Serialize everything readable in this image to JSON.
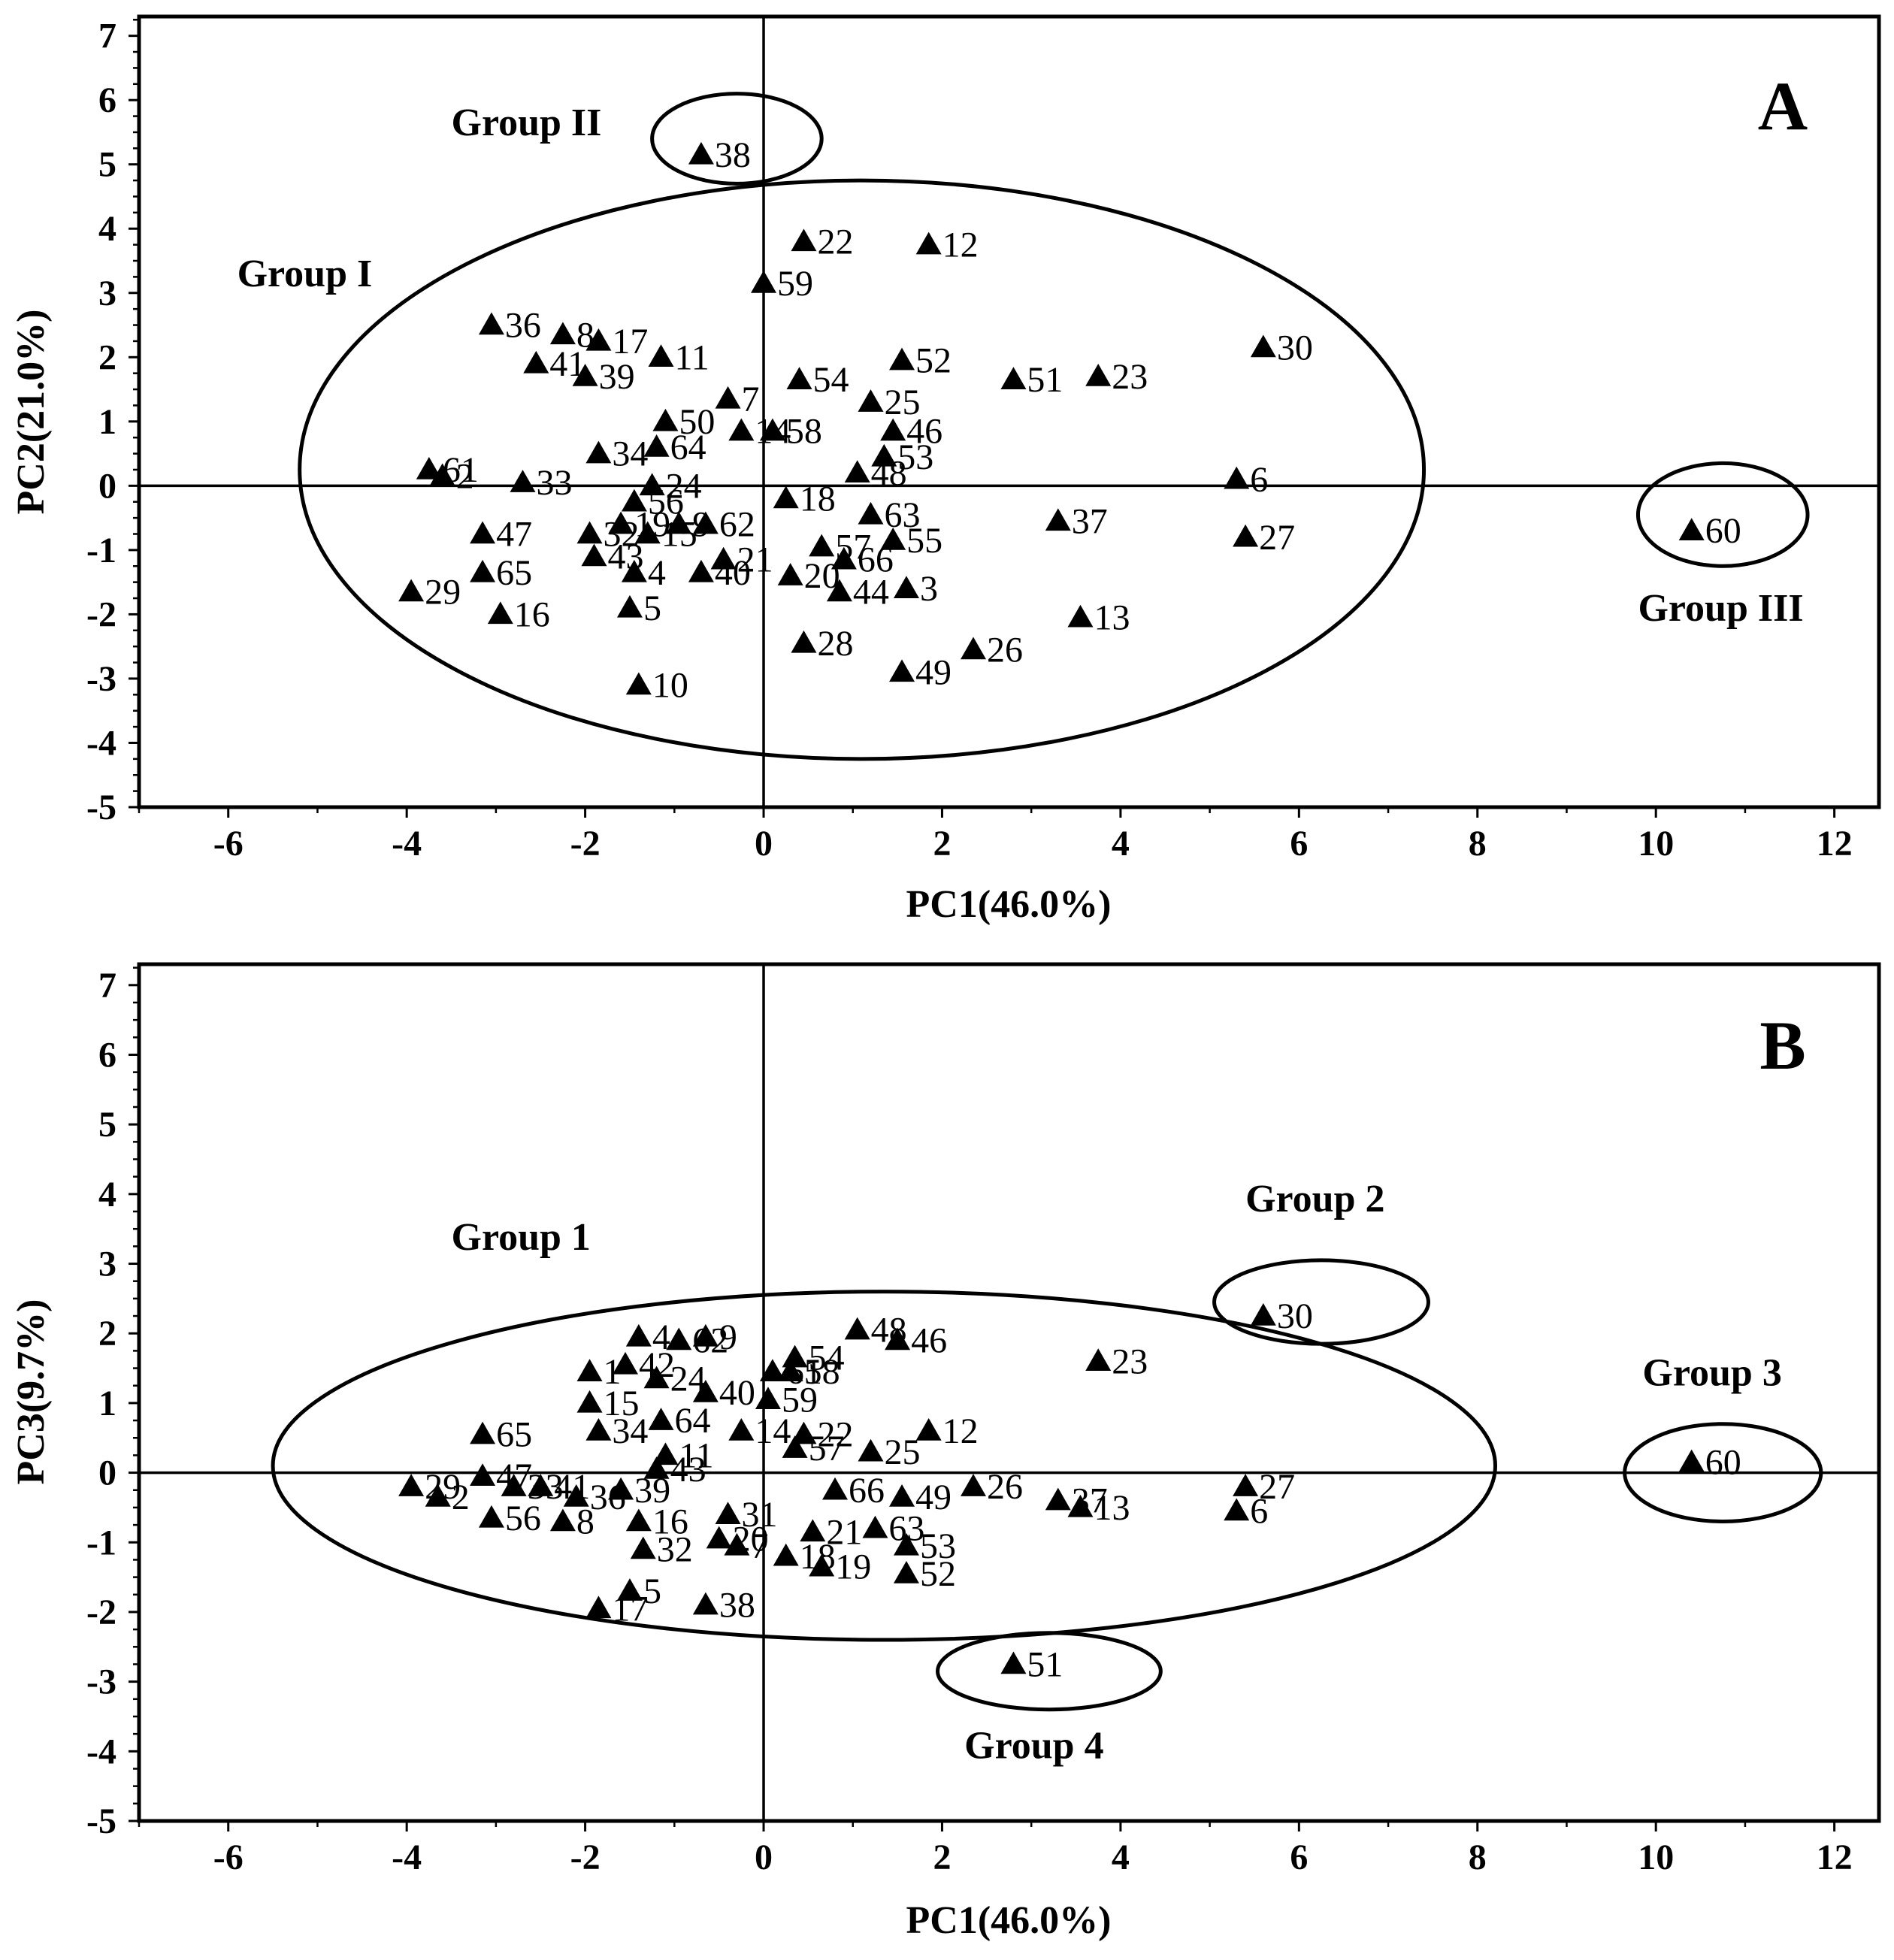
{
  "figure": {
    "colors": {
      "ink": "#000000",
      "background": "#ffffff"
    }
  },
  "chart_data": [
    {
      "type": "scatter",
      "panel": "A",
      "title": "",
      "xlabel": "PC1(46.0%)",
      "ylabel": "PC2(21.0%)",
      "xlim": [
        -7,
        12.5
      ],
      "ylim": [
        -5,
        7.3
      ],
      "xticks": [
        -6,
        -4,
        -2,
        0,
        2,
        4,
        6,
        8,
        10,
        12
      ],
      "yticks": [
        -5,
        -4,
        -3,
        -2,
        -1,
        0,
        1,
        2,
        3,
        4,
        5,
        6,
        7
      ],
      "grid": false,
      "marker": "triangle",
      "groups": [
        {
          "name": "Group I",
          "center": [
            1.1,
            0.25
          ],
          "radii": [
            6.3,
            4.5
          ]
        },
        {
          "name": "Group II",
          "center": [
            -0.3,
            5.4
          ],
          "radii": [
            0.95,
            0.7
          ]
        },
        {
          "name": "Group III",
          "center": [
            10.75,
            -0.45
          ],
          "radii": [
            0.95,
            0.8
          ]
        }
      ],
      "group_labels": [
        {
          "text": "Group I",
          "x": -5.9,
          "y": 3.1
        },
        {
          "text": "Group II",
          "x": -3.5,
          "y": 5.45
        },
        {
          "text": "Group III",
          "x": 9.8,
          "y": -2.1
        }
      ],
      "points": [
        {
          "id": "38",
          "x": -0.7,
          "y": 5.15
        },
        {
          "id": "22",
          "x": 0.45,
          "y": 3.8
        },
        {
          "id": "12",
          "x": 1.85,
          "y": 3.75
        },
        {
          "id": "59",
          "x": 0.0,
          "y": 3.15
        },
        {
          "id": "36",
          "x": -3.05,
          "y": 2.5
        },
        {
          "id": "8",
          "x": -2.25,
          "y": 2.35
        },
        {
          "id": "17",
          "x": -1.85,
          "y": 2.25
        },
        {
          "id": "11",
          "x": -1.15,
          "y": 2.0
        },
        {
          "id": "41",
          "x": -2.55,
          "y": 1.9
        },
        {
          "id": "39",
          "x": -2.0,
          "y": 1.7
        },
        {
          "id": "30",
          "x": 5.6,
          "y": 2.15
        },
        {
          "id": "52",
          "x": 1.55,
          "y": 1.95
        },
        {
          "id": "54",
          "x": 0.4,
          "y": 1.65
        },
        {
          "id": "51",
          "x": 2.8,
          "y": 1.65
        },
        {
          "id": "23",
          "x": 3.75,
          "y": 1.7
        },
        {
          "id": "7",
          "x": -0.4,
          "y": 1.35
        },
        {
          "id": "25",
          "x": 1.2,
          "y": 1.3
        },
        {
          "id": "50",
          "x": -1.1,
          "y": 1.0
        },
        {
          "id": "14",
          "x": -0.25,
          "y": 0.85
        },
        {
          "id": "58",
          "x": 0.1,
          "y": 0.85
        },
        {
          "id": "46",
          "x": 1.45,
          "y": 0.85
        },
        {
          "id": "64",
          "x": -1.2,
          "y": 0.6
        },
        {
          "id": "34",
          "x": -1.85,
          "y": 0.5
        },
        {
          "id": "53",
          "x": 1.35,
          "y": 0.45
        },
        {
          "id": "61",
          "x": -3.75,
          "y": 0.25
        },
        {
          "id": "2",
          "x": -3.6,
          "y": 0.15
        },
        {
          "id": "48",
          "x": 1.05,
          "y": 0.2
        },
        {
          "id": "33",
          "x": -2.7,
          "y": 0.05
        },
        {
          "id": "24",
          "x": -1.25,
          "y": 0.0
        },
        {
          "id": "6",
          "x": 5.3,
          "y": 0.1
        },
        {
          "id": "18",
          "x": 0.25,
          "y": -0.2
        },
        {
          "id": "56",
          "x": -1.45,
          "y": -0.25
        },
        {
          "id": "63",
          "x": 1.2,
          "y": -0.45
        },
        {
          "id": "37",
          "x": 3.3,
          "y": -0.55
        },
        {
          "id": "60",
          "x": 10.4,
          "y": -0.7
        },
        {
          "id": "47",
          "x": -3.15,
          "y": -0.75
        },
        {
          "id": "19",
          "x": -1.6,
          "y": -0.6
        },
        {
          "id": "9",
          "x": -0.95,
          "y": -0.6
        },
        {
          "id": "62",
          "x": -0.65,
          "y": -0.6
        },
        {
          "id": "32",
          "x": -1.95,
          "y": -0.75
        },
        {
          "id": "15",
          "x": -1.3,
          "y": -0.75
        },
        {
          "id": "27",
          "x": 5.4,
          "y": -0.8
        },
        {
          "id": "55",
          "x": 1.45,
          "y": -0.85
        },
        {
          "id": "57",
          "x": 0.65,
          "y": -0.95
        },
        {
          "id": "43",
          "x": -1.9,
          "y": -1.1
        },
        {
          "id": "21",
          "x": -0.45,
          "y": -1.15
        },
        {
          "id": "66",
          "x": 0.9,
          "y": -1.15
        },
        {
          "id": "65",
          "x": -3.15,
          "y": -1.35
        },
        {
          "id": "4",
          "x": -1.45,
          "y": -1.35
        },
        {
          "id": "40",
          "x": -0.7,
          "y": -1.35
        },
        {
          "id": "20",
          "x": 0.3,
          "y": -1.4
        },
        {
          "id": "44",
          "x": 0.85,
          "y": -1.65
        },
        {
          "id": "3",
          "x": 1.6,
          "y": -1.6
        },
        {
          "id": "29",
          "x": -3.95,
          "y": -1.65
        },
        {
          "id": "5",
          "x": -1.5,
          "y": -1.9
        },
        {
          "id": "16",
          "x": -2.95,
          "y": -2.0
        },
        {
          "id": "13",
          "x": 3.55,
          "y": -2.05
        },
        {
          "id": "28",
          "x": 0.45,
          "y": -2.45
        },
        {
          "id": "26",
          "x": 2.35,
          "y": -2.55
        },
        {
          "id": "49",
          "x": 1.55,
          "y": -2.9
        },
        {
          "id": "10",
          "x": -1.4,
          "y": -3.1
        }
      ]
    },
    {
      "type": "scatter",
      "panel": "B",
      "title": "",
      "xlabel": "PC1(46.0%)",
      "ylabel": "PC3(9.7%)",
      "xlim": [
        -7,
        12.5
      ],
      "ylim": [
        -5,
        7.3
      ],
      "xticks": [
        -6,
        -4,
        -2,
        0,
        2,
        4,
        6,
        8,
        10,
        12
      ],
      "yticks": [
        -5,
        -4,
        -3,
        -2,
        -1,
        0,
        1,
        2,
        3,
        4,
        5,
        6,
        7
      ],
      "grid": false,
      "marker": "triangle",
      "groups": [
        {
          "name": "Group 1",
          "center": [
            1.35,
            0.1
          ],
          "radii": [
            6.85,
            2.5
          ]
        },
        {
          "name": "Group 2",
          "center": [
            6.25,
            2.45
          ],
          "radii": [
            1.2,
            0.6
          ]
        },
        {
          "name": "Group 3",
          "center": [
            10.75,
            0.0
          ],
          "radii": [
            1.1,
            0.7
          ]
        },
        {
          "name": "Group 4",
          "center": [
            3.2,
            -2.85
          ],
          "radii": [
            1.25,
            0.55
          ]
        }
      ],
      "group_labels": [
        {
          "text": "Group 1",
          "x": -3.5,
          "y": 3.2
        },
        {
          "text": "Group 2",
          "x": 5.4,
          "y": 3.75
        },
        {
          "text": "Group 3",
          "x": 9.85,
          "y": 1.25
        },
        {
          "text": "Group 4",
          "x": 2.25,
          "y": -4.1
        }
      ],
      "points": [
        {
          "id": "30",
          "x": 5.6,
          "y": 2.25
        },
        {
          "id": "48",
          "x": 1.05,
          "y": 2.05
        },
        {
          "id": "46",
          "x": 1.5,
          "y": 1.9
        },
        {
          "id": "4",
          "x": -1.4,
          "y": 1.95
        },
        {
          "id": "9",
          "x": -0.65,
          "y": 1.95
        },
        {
          "id": "62",
          "x": -0.95,
          "y": 1.9
        },
        {
          "id": "23",
          "x": 3.75,
          "y": 1.6
        },
        {
          "id": "54",
          "x": 0.35,
          "y": 1.65
        },
        {
          "id": "58",
          "x": 0.3,
          "y": 1.45
        },
        {
          "id": "61",
          "x": 0.1,
          "y": 1.45
        },
        {
          "id": "1",
          "x": -1.95,
          "y": 1.45
        },
        {
          "id": "42",
          "x": -1.55,
          "y": 1.55
        },
        {
          "id": "24",
          "x": -1.2,
          "y": 1.35
        },
        {
          "id": "40",
          "x": -0.65,
          "y": 1.15
        },
        {
          "id": "59",
          "x": 0.05,
          "y": 1.05
        },
        {
          "id": "15",
          "x": -1.95,
          "y": 1.0
        },
        {
          "id": "64",
          "x": -1.15,
          "y": 0.75
        },
        {
          "id": "65",
          "x": -3.15,
          "y": 0.55
        },
        {
          "id": "34",
          "x": -1.85,
          "y": 0.6
        },
        {
          "id": "14",
          "x": -0.25,
          "y": 0.6
        },
        {
          "id": "22",
          "x": 0.45,
          "y": 0.55
        },
        {
          "id": "12",
          "x": 1.85,
          "y": 0.6
        },
        {
          "id": "57",
          "x": 0.35,
          "y": 0.35
        },
        {
          "id": "25",
          "x": 1.2,
          "y": 0.3
        },
        {
          "id": "11",
          "x": -1.1,
          "y": 0.25
        },
        {
          "id": "43",
          "x": -1.2,
          "y": 0.05
        },
        {
          "id": "60",
          "x": 10.4,
          "y": 0.15
        },
        {
          "id": "47",
          "x": -3.15,
          "y": -0.05
        },
        {
          "id": "29",
          "x": -3.95,
          "y": -0.2
        },
        {
          "id": "33",
          "x": -2.8,
          "y": -0.2
        },
        {
          "id": "41",
          "x": -2.5,
          "y": -0.2
        },
        {
          "id": "39",
          "x": -1.6,
          "y": -0.25
        },
        {
          "id": "26",
          "x": 2.35,
          "y": -0.2
        },
        {
          "id": "27",
          "x": 5.4,
          "y": -0.2
        },
        {
          "id": "66",
          "x": 0.8,
          "y": -0.25
        },
        {
          "id": "2",
          "x": -3.65,
          "y": -0.35
        },
        {
          "id": "36",
          "x": -2.1,
          "y": -0.35
        },
        {
          "id": "49",
          "x": 1.55,
          "y": -0.35
        },
        {
          "id": "37",
          "x": 3.3,
          "y": -0.4
        },
        {
          "id": "13",
          "x": 3.55,
          "y": -0.5
        },
        {
          "id": "6",
          "x": 5.3,
          "y": -0.55
        },
        {
          "id": "56",
          "x": -3.05,
          "y": -0.65
        },
        {
          "id": "8",
          "x": -2.25,
          "y": -0.7
        },
        {
          "id": "31",
          "x": -0.4,
          "y": -0.6
        },
        {
          "id": "16",
          "x": -1.4,
          "y": -0.7
        },
        {
          "id": "63",
          "x": 1.25,
          "y": -0.8
        },
        {
          "id": "21",
          "x": 0.55,
          "y": -0.85
        },
        {
          "id": "20",
          "x": -0.5,
          "y": -0.95
        },
        {
          "id": "7",
          "x": -0.3,
          "y": -1.05
        },
        {
          "id": "32",
          "x": -1.35,
          "y": -1.1
        },
        {
          "id": "53",
          "x": 1.6,
          "y": -1.05
        },
        {
          "id": "18",
          "x": 0.25,
          "y": -1.2
        },
        {
          "id": "19",
          "x": 0.65,
          "y": -1.35
        },
        {
          "id": "52",
          "x": 1.6,
          "y": -1.45
        },
        {
          "id": "5",
          "x": -1.5,
          "y": -1.7
        },
        {
          "id": "17",
          "x": -1.85,
          "y": -1.95
        },
        {
          "id": "38",
          "x": -0.65,
          "y": -1.9
        },
        {
          "id": "51",
          "x": 2.8,
          "y": -2.75
        }
      ]
    }
  ],
  "panels": [
    {
      "letter": "A",
      "x_title": "PC1(46.0%)",
      "y_title": "PC2(21.0%)"
    },
    {
      "letter": "B",
      "x_title": "PC1(46.0%)",
      "y_title": "PC3(9.7%)"
    }
  ]
}
